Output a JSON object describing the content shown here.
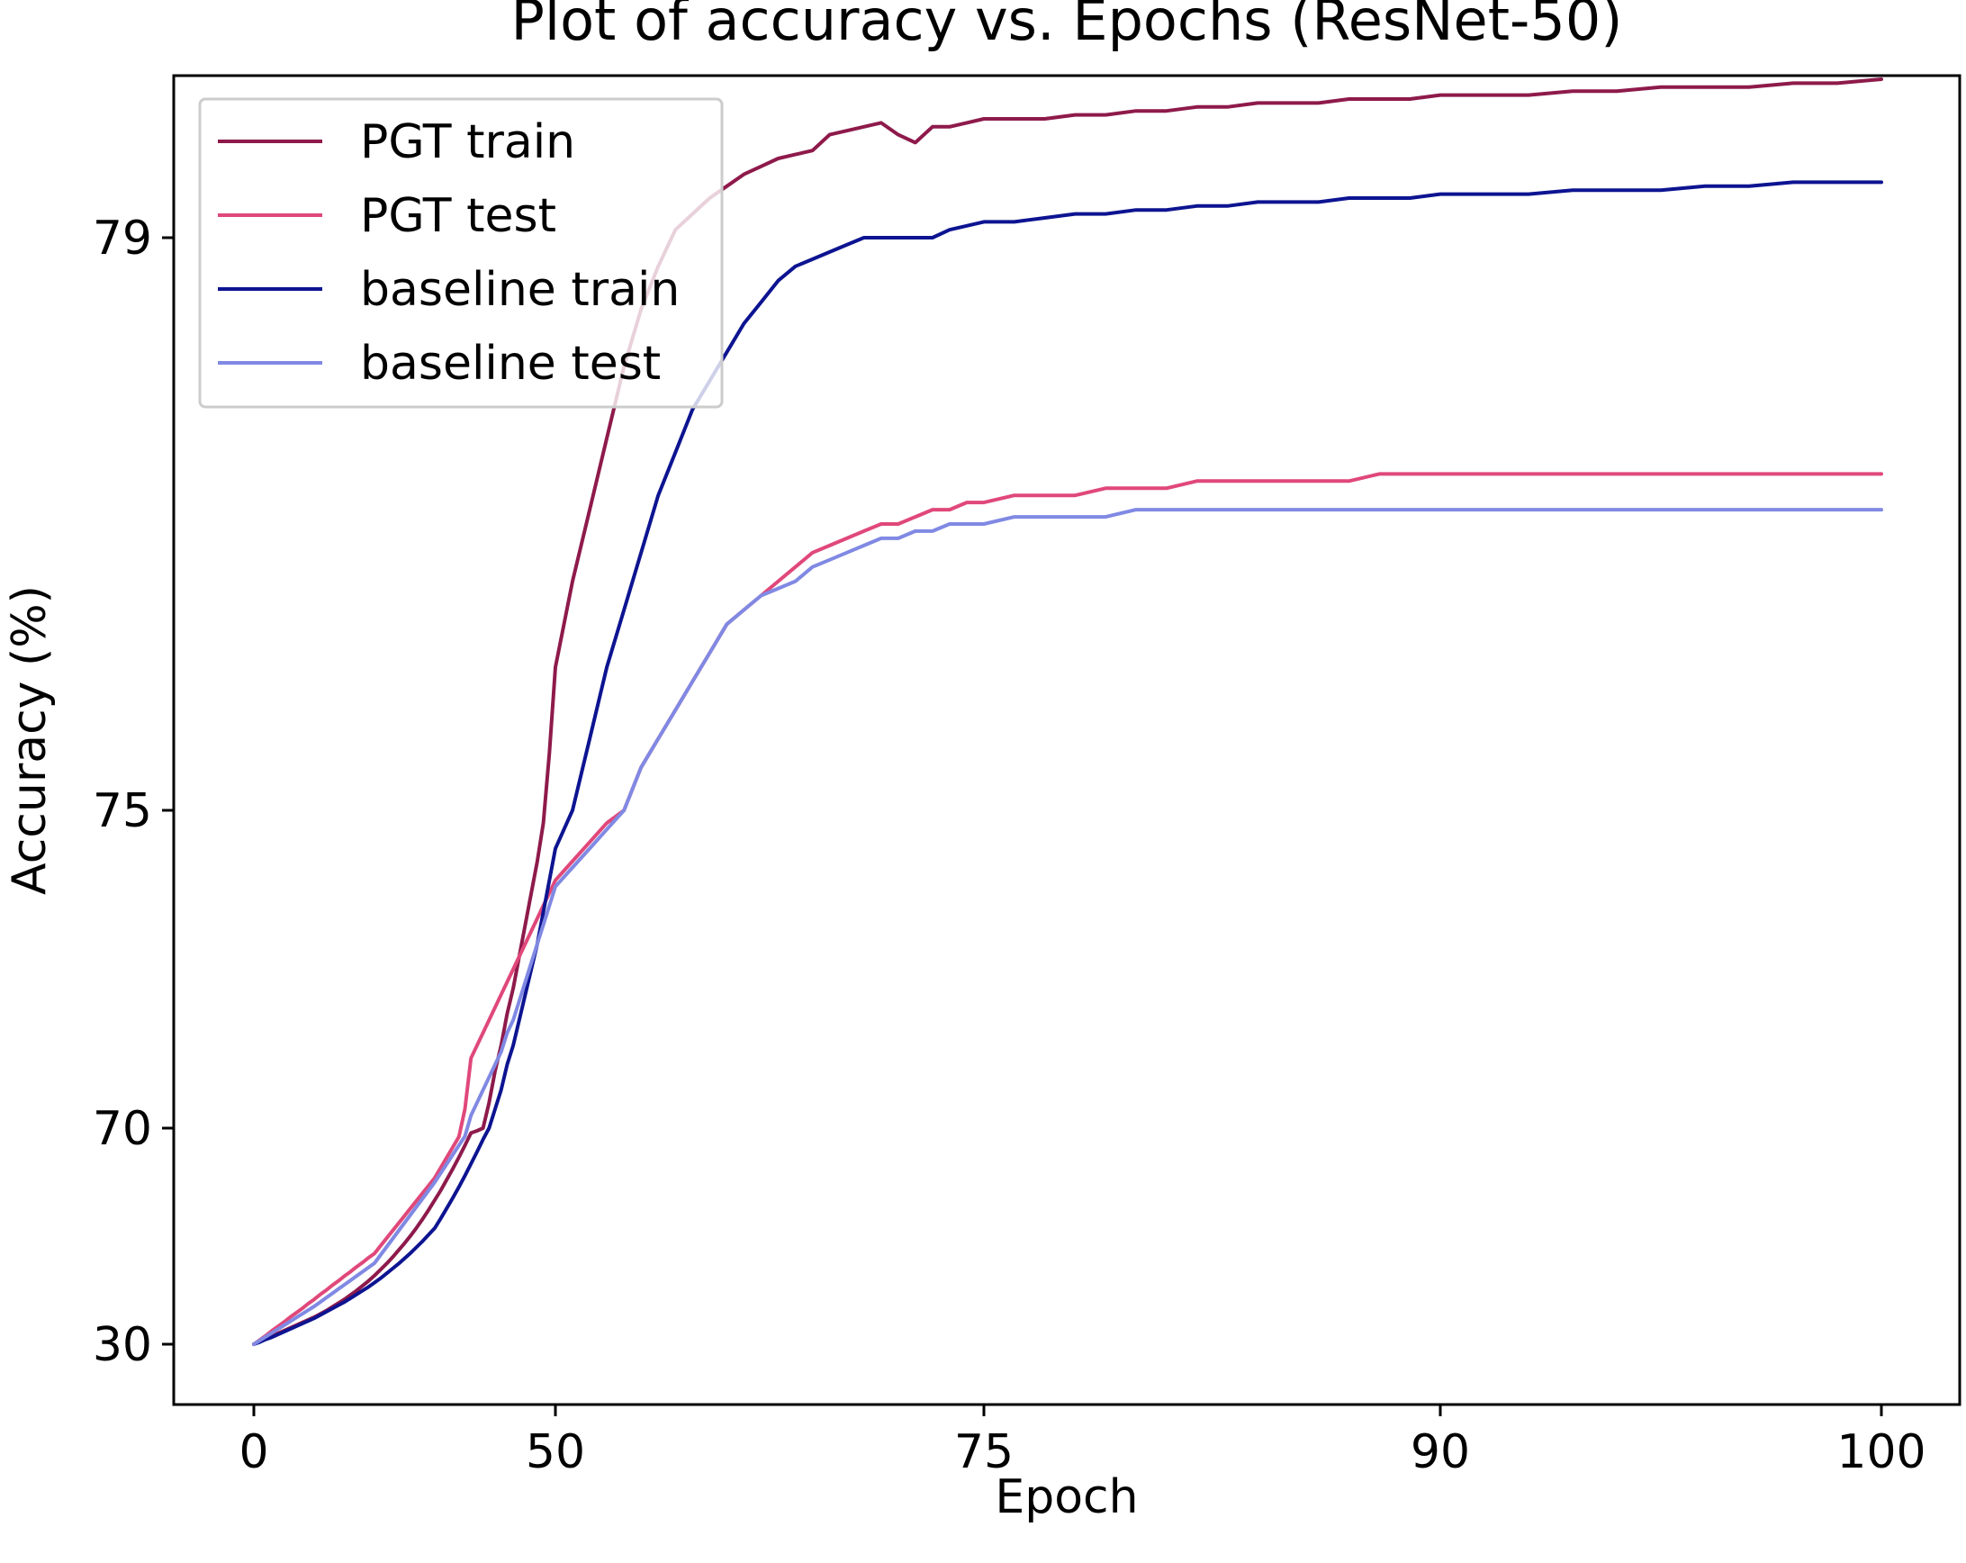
{
  "chart_data": {
    "type": "line",
    "title": "Plot of accuracy vs. Epochs (ResNet-50)",
    "xlabel": "Epoch",
    "ylabel": "Accuracy (%)",
    "x_ticks": [
      "0",
      "50",
      "75",
      "90",
      "100"
    ],
    "y_ticks": [
      "30",
      "70",
      "75",
      "79"
    ],
    "grid": false,
    "legend_position": "top-left",
    "x": [
      0,
      1,
      2,
      3,
      4,
      5,
      6,
      7,
      8,
      9,
      10,
      11,
      12,
      13,
      14,
      15,
      16,
      17,
      18,
      19,
      20,
      21,
      22,
      23,
      24,
      25,
      26,
      27,
      28,
      29,
      30,
      31,
      32,
      33,
      34,
      35,
      36,
      37,
      38,
      39,
      40,
      41,
      42,
      43,
      44,
      45,
      46,
      47,
      48,
      49,
      50,
      51,
      52,
      53,
      54,
      55,
      56,
      57,
      58,
      59,
      60,
      61,
      62,
      63,
      64,
      65,
      66,
      67,
      68,
      69,
      70,
      71,
      72,
      73,
      74,
      75,
      76,
      77,
      78,
      79,
      80,
      81,
      82,
      83,
      84,
      85,
      86,
      87,
      88,
      89,
      90,
      91,
      92,
      93,
      94,
      95,
      96,
      97,
      98,
      99,
      100
    ],
    "series": [
      {
        "name": "PGT train",
        "color": "#8e1a4b",
        "values": [
          30.0,
          30.5,
          31.0,
          31.5,
          32.0,
          32.5,
          33.0,
          33.5,
          34.0,
          34.5,
          35.0,
          35.6,
          36.2,
          36.9,
          37.6,
          38.3,
          39.1,
          39.9,
          40.8,
          41.7,
          42.7,
          43.8,
          44.9,
          46.1,
          47.4,
          48.7,
          50.1,
          51.6,
          53.2,
          54.9,
          56.7,
          58.5,
          60.5,
          62.5,
          64.6,
          66.8,
          69.1,
          69.5,
          70.0,
          70.4,
          70.9,
          71.3,
          71.8,
          72.2,
          72.7,
          73.2,
          73.7,
          74.2,
          74.8,
          75.4,
          76.0,
          76.6,
          77.1,
          77.6,
          78.1,
          78.5,
          78.8,
          79.1,
          79.3,
          79.5,
          79.65,
          79.8,
          79.9,
          80.0,
          80.05,
          80.1,
          80.3,
          80.35,
          80.4,
          80.45,
          80.3,
          80.2,
          80.4,
          80.4,
          80.45,
          80.5,
          80.5,
          80.5,
          80.55,
          80.55,
          80.6,
          80.6,
          80.65,
          80.65,
          80.7,
          80.7,
          80.7,
          80.75,
          80.75,
          80.75,
          80.8,
          80.8,
          80.8,
          80.85,
          80.85,
          80.9,
          80.9,
          80.9,
          80.95,
          80.95,
          81.0
        ]
      },
      {
        "name": "PGT test",
        "color": "#e0487a",
        "values": [
          30.0,
          30.8,
          31.6,
          32.5,
          33.3,
          34.1,
          35.0,
          35.8,
          36.6,
          37.5,
          38.3,
          39.2,
          40.0,
          40.9,
          41.7,
          42.6,
          43.4,
          44.3,
          45.1,
          46.0,
          46.8,
          48.2,
          49.6,
          51.0,
          52.4,
          53.8,
          55.2,
          56.6,
          58.0,
          59.4,
          60.8,
          62.7,
          64.6,
          66.5,
          68.4,
          70.3,
          71.1,
          71.3,
          71.5,
          71.7,
          71.9,
          72.1,
          72.3,
          72.5,
          72.7,
          72.9,
          73.1,
          73.3,
          73.5,
          73.7,
          73.9,
          74.2,
          74.5,
          74.8,
          75.0,
          75.3,
          75.5,
          75.7,
          75.9,
          76.1,
          76.3,
          76.4,
          76.5,
          76.6,
          76.7,
          76.8,
          76.85,
          76.9,
          76.95,
          77.0,
          77.0,
          77.05,
          77.1,
          77.1,
          77.15,
          77.15,
          77.2,
          77.2,
          77.2,
          77.25,
          77.25,
          77.25,
          77.3,
          77.3,
          77.3,
          77.3,
          77.3,
          77.3,
          77.35,
          77.35,
          77.35,
          77.35,
          77.35,
          77.35,
          77.35,
          77.35,
          77.35,
          77.35,
          77.35,
          77.35,
          77.35
        ]
      },
      {
        "name": "baseline train",
        "color": "#0d1491",
        "values": [
          30.0,
          30.4,
          30.9,
          31.3,
          31.8,
          32.3,
          32.8,
          33.3,
          33.8,
          34.3,
          34.8,
          35.4,
          36.0,
          36.6,
          37.2,
          37.8,
          38.5,
          39.2,
          39.9,
          40.6,
          41.4,
          42.2,
          43.1,
          44.0,
          44.9,
          45.9,
          46.9,
          48.0,
          49.1,
          50.3,
          51.5,
          53.3,
          55.2,
          57.1,
          59.1,
          61.2,
          63.4,
          65.6,
          67.9,
          70.0,
          70.3,
          70.6,
          71.0,
          71.3,
          71.7,
          72.1,
          72.5,
          72.9,
          73.4,
          73.9,
          74.4,
          75.0,
          75.5,
          76.0,
          76.4,
          76.8,
          77.2,
          77.5,
          77.8,
          78.0,
          78.2,
          78.4,
          78.55,
          78.7,
          78.8,
          78.85,
          78.9,
          78.95,
          79.0,
          79.0,
          79.0,
          79.0,
          79.0,
          79.1,
          79.15,
          79.2,
          79.2,
          79.25,
          79.3,
          79.3,
          79.35,
          79.35,
          79.4,
          79.4,
          79.45,
          79.45,
          79.45,
          79.5,
          79.5,
          79.5,
          79.55,
          79.55,
          79.55,
          79.6,
          79.6,
          79.6,
          79.65,
          79.65,
          79.7,
          79.7,
          79.7
        ]
      },
      {
        "name": "baseline test",
        "color": "#8089e3",
        "values": [
          30.0,
          30.7,
          31.4,
          32.1,
          32.8,
          33.5,
          34.2,
          34.9,
          35.6,
          36.3,
          37.0,
          37.8,
          38.6,
          39.4,
          40.2,
          41.0,
          41.8,
          42.6,
          43.4,
          44.2,
          45.0,
          46.5,
          48.0,
          49.5,
          51.0,
          52.5,
          54.0,
          55.5,
          57.0,
          58.5,
          60.0,
          61.7,
          63.4,
          65.1,
          66.8,
          68.5,
          70.2,
          70.4,
          70.6,
          70.8,
          71.0,
          71.2,
          71.5,
          71.7,
          72.0,
          72.3,
          72.6,
          72.9,
          73.2,
          73.5,
          73.8,
          74.1,
          74.4,
          74.7,
          75.0,
          75.3,
          75.5,
          75.7,
          75.9,
          76.1,
          76.3,
          76.4,
          76.5,
          76.55,
          76.6,
          76.7,
          76.75,
          76.8,
          76.85,
          76.9,
          76.9,
          76.95,
          76.95,
          77.0,
          77.0,
          77.0,
          77.05,
          77.05,
          77.05,
          77.05,
          77.1,
          77.1,
          77.1,
          77.1,
          77.1,
          77.1,
          77.1,
          77.1,
          77.1,
          77.1,
          77.1,
          77.1,
          77.1,
          77.1,
          77.1,
          77.1,
          77.1,
          77.1,
          77.1,
          77.1,
          77.1
        ]
      }
    ]
  }
}
